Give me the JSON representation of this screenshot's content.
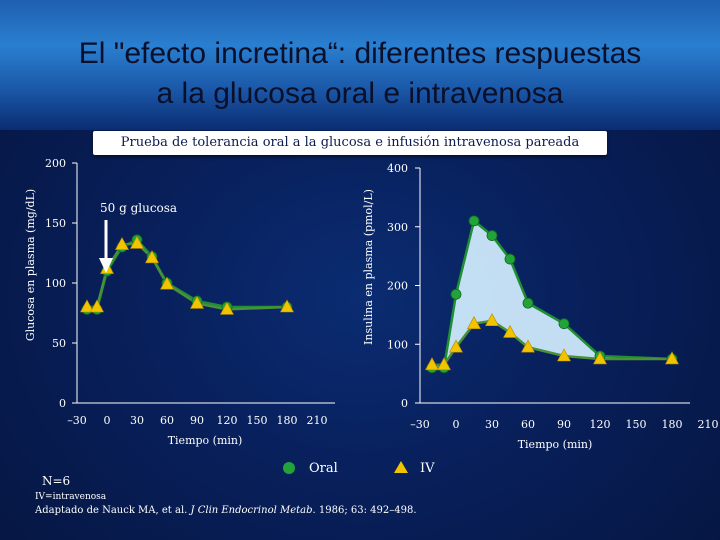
{
  "title": {
    "line1": "El \"efecto incretina“: diferentes respuestas",
    "line2": "a la glucosa oral e intravenosa"
  },
  "subtitle": "Prueba de tolerancia oral a la glucosa e infusión intravenosa pareada",
  "annotation": "50 g glucosa",
  "legend": {
    "oral": "Oral",
    "iv": "IV"
  },
  "n_label": "N=6",
  "footnote": "IV=intravenosa",
  "citation": {
    "authors": "Adaptado de Nauck MA, et al.",
    "journal": "J Clin Endocrinol Metab",
    "details": ". 1986; 63: 492–498."
  },
  "colors": {
    "oral": "#22a33a",
    "iv": "#f2c400",
    "fill": "#cde9fb",
    "oral_line": "#1e8f32",
    "iv_line": "#4a8f3a"
  },
  "chart_data": [
    {
      "type": "line",
      "ylabel": "Glucosa en plasma (mg/dL)",
      "xlabel": "Tiempo (min)",
      "ylim": [
        0,
        200
      ],
      "yticks": [
        0,
        50,
        100,
        150,
        200
      ],
      "xticks": [
        -30,
        0,
        30,
        60,
        90,
        120,
        150,
        180,
        210
      ],
      "xtick_labels": [
        "–30",
        "0",
        "30",
        "60",
        "90",
        "120",
        "150",
        "180",
        "210"
      ],
      "series": [
        {
          "name": "Oral",
          "marker": "circle",
          "x": [
            -20,
            -10,
            0,
            15,
            30,
            45,
            60,
            90,
            120,
            180
          ],
          "y": [
            78,
            78,
            110,
            130,
            136,
            122,
            100,
            85,
            80,
            80
          ]
        },
        {
          "name": "IV",
          "marker": "triangle",
          "x": [
            -20,
            -10,
            0,
            15,
            30,
            45,
            60,
            90,
            120,
            180
          ],
          "y": [
            80,
            80,
            112,
            132,
            133,
            121,
            99,
            83,
            78,
            80
          ]
        }
      ]
    },
    {
      "type": "line",
      "ylabel": "Insulina en plasma (pmol/L)",
      "xlabel": "Tiempo (min)",
      "ylim": [
        0,
        400
      ],
      "yticks": [
        0,
        100,
        200,
        300,
        400
      ],
      "xticks": [
        -30,
        0,
        30,
        60,
        90,
        120,
        150,
        180,
        210
      ],
      "xtick_labels": [
        "–30",
        "0",
        "30",
        "60",
        "90",
        "120",
        "150",
        "180",
        "210"
      ],
      "series": [
        {
          "name": "Oral",
          "marker": "circle",
          "x": [
            -20,
            -10,
            0,
            15,
            30,
            45,
            60,
            90,
            120,
            180
          ],
          "y": [
            60,
            60,
            185,
            310,
            285,
            245,
            170,
            135,
            80,
            75
          ]
        },
        {
          "name": "IV",
          "marker": "triangle",
          "x": [
            -20,
            -10,
            0,
            15,
            30,
            45,
            60,
            90,
            120,
            180
          ],
          "y": [
            65,
            65,
            95,
            135,
            140,
            120,
            95,
            80,
            75,
            75
          ]
        }
      ]
    }
  ]
}
